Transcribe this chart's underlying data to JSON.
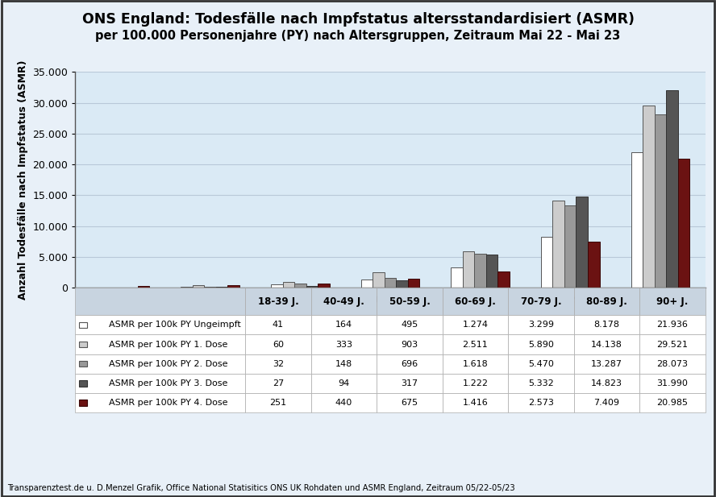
{
  "title_line1": "ONS England: Todesfälle nach Impfstatus altersstandardisiert (ASMR)",
  "title_line2": "per 100.000 Personenjahre (PY) nach Altersgruppen, Zeitraum Mai 22 - Mai 23",
  "ylabel": "Anzahl Todesfälle nach Impfstatus (ASMR)",
  "categories": [
    "18-39 J.",
    "40-49 J.",
    "50-59 J.",
    "60-69 J.",
    "70-79 J.",
    "80-89 J.",
    "90+ J."
  ],
  "series": [
    {
      "label": "ASMR per 100k PY Ungeimpft",
      "color": "#ffffff",
      "edgecolor": "#555555",
      "values": [
        41,
        164,
        495,
        1274,
        3299,
        8178,
        21936
      ]
    },
    {
      "label": "ASMR per 100k PY 1. Dose",
      "color": "#cccccc",
      "edgecolor": "#555555",
      "values": [
        60,
        333,
        903,
        2511,
        5890,
        14138,
        29521
      ]
    },
    {
      "label": "ASMR per 100k PY 2. Dose",
      "color": "#999999",
      "edgecolor": "#555555",
      "values": [
        32,
        148,
        696,
        1618,
        5470,
        13287,
        28073
      ]
    },
    {
      "label": "ASMR per 100k PY 3. Dose",
      "color": "#555555",
      "edgecolor": "#333333",
      "values": [
        27,
        94,
        317,
        1222,
        5332,
        14823,
        31990
      ]
    },
    {
      "label": "ASMR per 100k PY 4. Dose",
      "color": "#6b1212",
      "edgecolor": "#3a0808",
      "values": [
        251,
        440,
        675,
        1416,
        2573,
        7409,
        20985
      ]
    }
  ],
  "ylim": [
    0,
    35000
  ],
  "yticks": [
    0,
    5000,
    10000,
    15000,
    20000,
    25000,
    30000,
    35000
  ],
  "ytick_labels": [
    "0",
    "5.000",
    "10.000",
    "15.000",
    "20.000",
    "25.000",
    "30.000",
    "35.000"
  ],
  "plot_bg_color": "#daeaf5",
  "outer_bg_color": "#e8f0f8",
  "border_color": "#555555",
  "grid_color": "#b8c8d8",
  "footer": "Transparenztest.de u. D.Menzel Grafik, Office National Statisitics ONS UK Rohdaten und ASMR England, Zeitraum 05/22-05/23",
  "table_header_row": [
    "",
    "18-39 J.",
    "40-49 J.",
    "50-59 J.",
    "60-69 J.",
    "70-79 J.",
    "80-89 J.",
    "90+ J."
  ],
  "formatted_values": [
    [
      "41",
      "164",
      "495",
      "1.274",
      "3.299",
      "8.178",
      "21.936"
    ],
    [
      "60",
      "333",
      "903",
      "2.511",
      "5.890",
      "14.138",
      "29.521"
    ],
    [
      "32",
      "148",
      "696",
      "1.618",
      "5.470",
      "13.287",
      "28.073"
    ],
    [
      "27",
      "94",
      "317",
      "1.222",
      "5.332",
      "14.823",
      "31.990"
    ],
    [
      "251",
      "440",
      "675",
      "1.416",
      "2.573",
      "7.409",
      "20.985"
    ]
  ]
}
